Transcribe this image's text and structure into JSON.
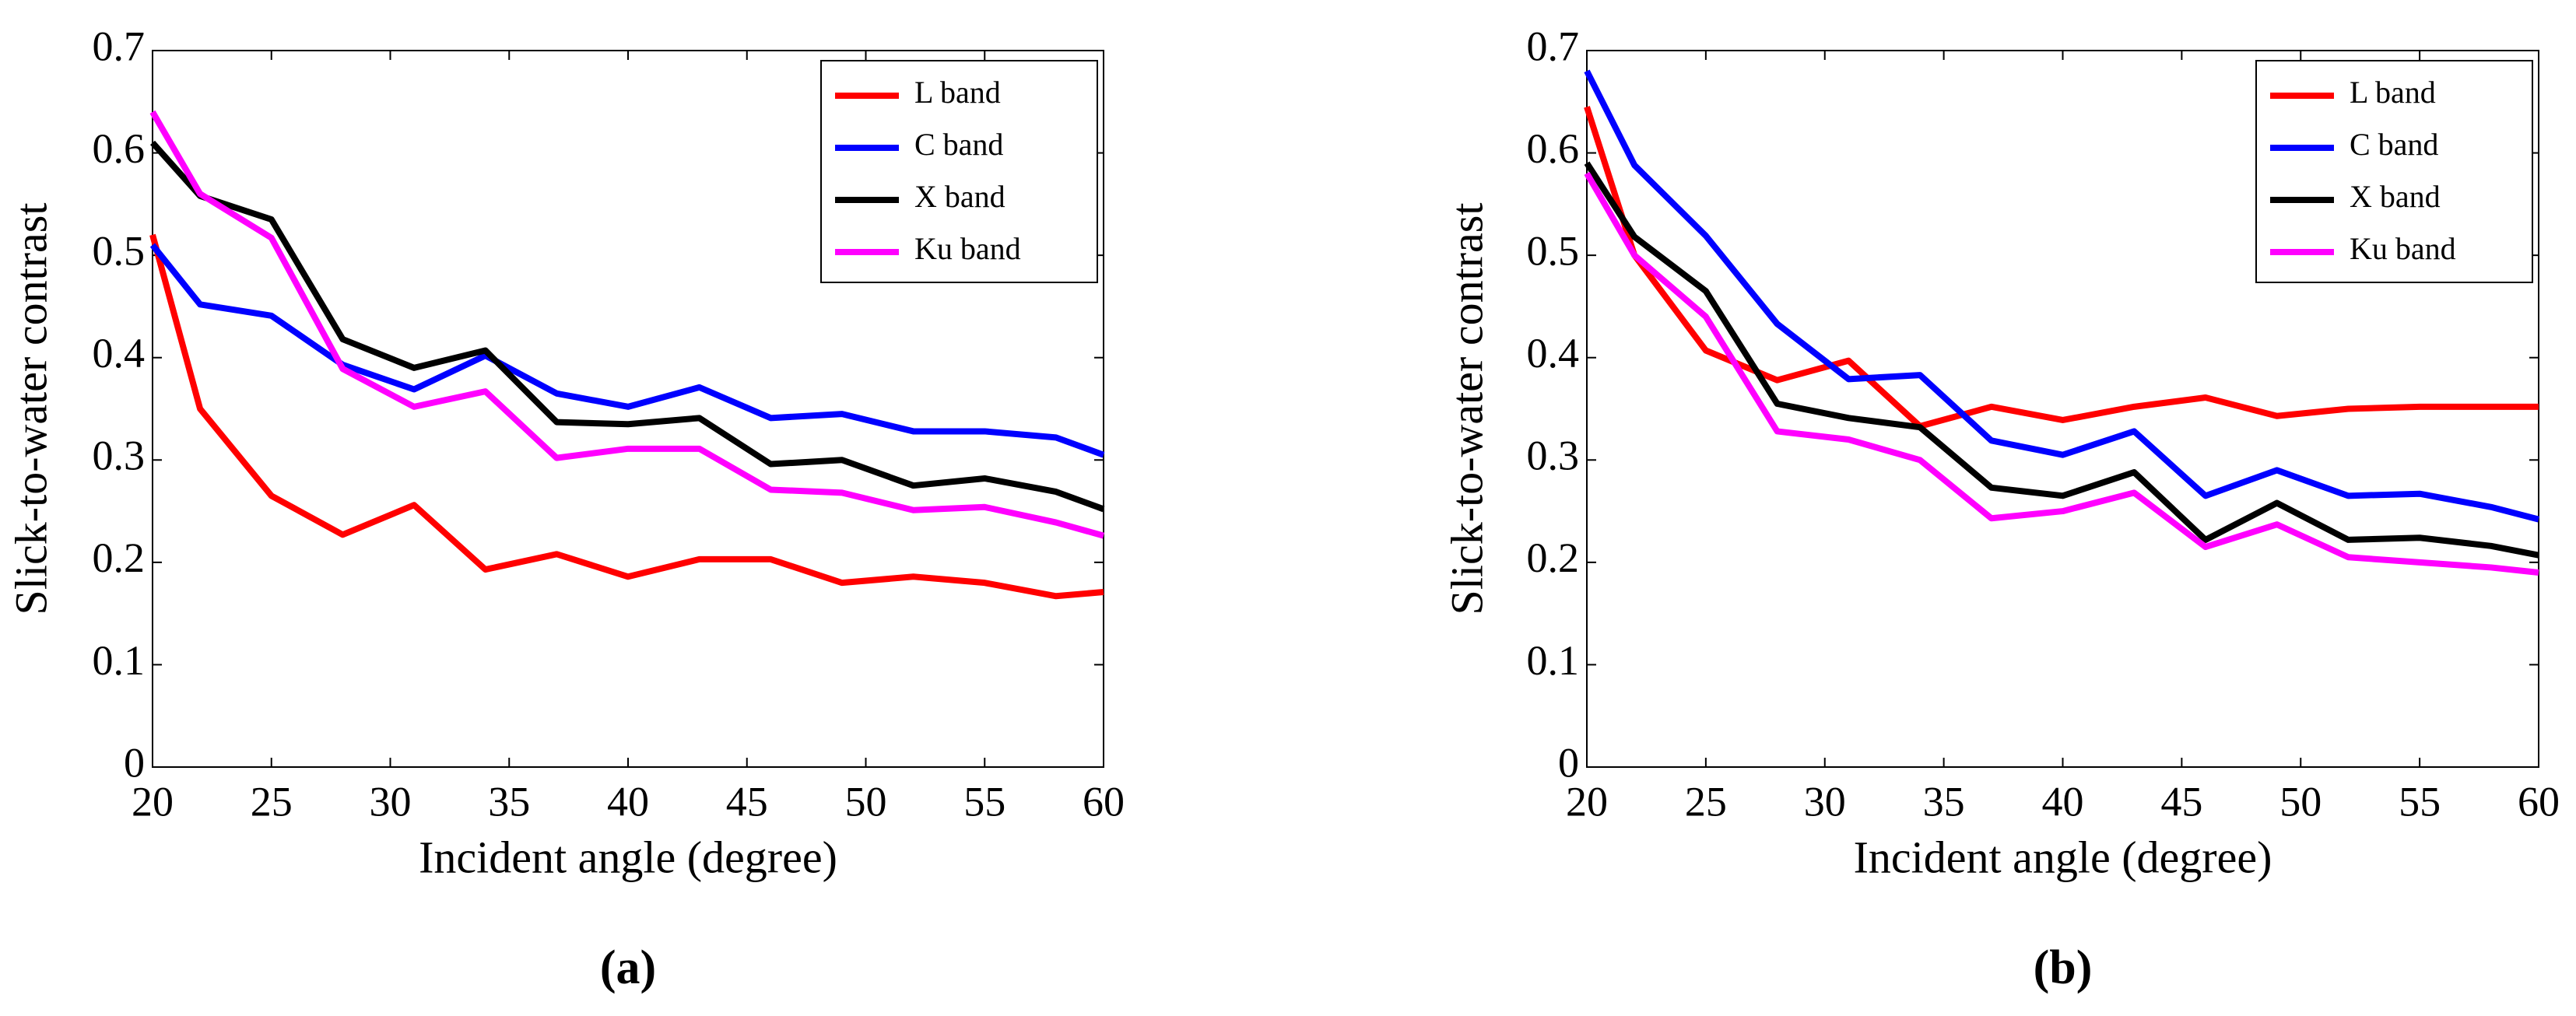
{
  "chart_data": [
    {
      "type": "line",
      "caption": "(a)",
      "xlabel": "Incident angle (degree)",
      "ylabel": "Slick-to-water contrast",
      "x": [
        20,
        22,
        25,
        28,
        31,
        34,
        37,
        40,
        43,
        46,
        49,
        52,
        55,
        58,
        60
      ],
      "xlim": [
        20,
        60
      ],
      "xticks": [
        20,
        25,
        30,
        35,
        40,
        45,
        50,
        55,
        60
      ],
      "ylim": [
        0,
        0.7
      ],
      "yticks": [
        0,
        0.1,
        0.2,
        0.3,
        0.4,
        0.5,
        0.6,
        0.7
      ],
      "legend": "upper right",
      "series": [
        {
          "name": "L band",
          "color": "#ff0000",
          "values": [
            0.52,
            0.35,
            0.265,
            0.227,
            0.256,
            0.193,
            0.208,
            0.186,
            0.203,
            0.203,
            0.18,
            0.186,
            0.18,
            0.167,
            0.171
          ]
        },
        {
          "name": "C band",
          "color": "#0000ff",
          "values": [
            0.51,
            0.452,
            0.441,
            0.393,
            0.369,
            0.402,
            0.365,
            0.352,
            0.371,
            0.341,
            0.345,
            0.328,
            0.328,
            0.322,
            0.305
          ]
        },
        {
          "name": "X band",
          "color": "#000000",
          "values": [
            0.61,
            0.558,
            0.535,
            0.418,
            0.39,
            0.407,
            0.337,
            0.335,
            0.341,
            0.296,
            0.3,
            0.275,
            0.282,
            0.269,
            0.252
          ]
        },
        {
          "name": "Ku band",
          "color": "#ff00ff",
          "values": [
            0.64,
            0.56,
            0.517,
            0.389,
            0.352,
            0.367,
            0.302,
            0.311,
            0.311,
            0.271,
            0.268,
            0.251,
            0.254,
            0.239,
            0.226
          ]
        }
      ]
    },
    {
      "type": "line",
      "caption": "(b)",
      "xlabel": "Incident angle (degree)",
      "ylabel": "Slick-to-water contrast",
      "x": [
        20,
        22,
        25,
        28,
        31,
        34,
        37,
        40,
        43,
        46,
        49,
        52,
        55,
        58,
        60
      ],
      "xlim": [
        20,
        60
      ],
      "xticks": [
        20,
        25,
        30,
        35,
        40,
        45,
        50,
        55,
        60
      ],
      "ylim": [
        0,
        0.7
      ],
      "yticks": [
        0,
        0.1,
        0.2,
        0.3,
        0.4,
        0.5,
        0.6,
        0.7
      ],
      "legend": "upper right",
      "series": [
        {
          "name": "L band",
          "color": "#ff0000",
          "values": [
            0.645,
            0.5,
            0.407,
            0.378,
            0.397,
            0.333,
            0.352,
            0.339,
            0.352,
            0.361,
            0.343,
            0.35,
            0.352,
            0.352,
            0.352
          ]
        },
        {
          "name": "C band",
          "color": "#0000ff",
          "values": [
            0.68,
            0.588,
            0.519,
            0.433,
            0.379,
            0.383,
            0.319,
            0.305,
            0.328,
            0.265,
            0.29,
            0.265,
            0.267,
            0.254,
            0.242
          ]
        },
        {
          "name": "X band",
          "color": "#000000",
          "values": [
            0.59,
            0.518,
            0.465,
            0.355,
            0.341,
            0.332,
            0.273,
            0.265,
            0.288,
            0.222,
            0.258,
            0.222,
            0.224,
            0.216,
            0.207
          ]
        },
        {
          "name": "Ku band",
          "color": "#ff00ff",
          "values": [
            0.58,
            0.5,
            0.44,
            0.328,
            0.32,
            0.3,
            0.243,
            0.25,
            0.268,
            0.215,
            0.237,
            0.205,
            0.2,
            0.195,
            0.19
          ]
        }
      ]
    }
  ]
}
